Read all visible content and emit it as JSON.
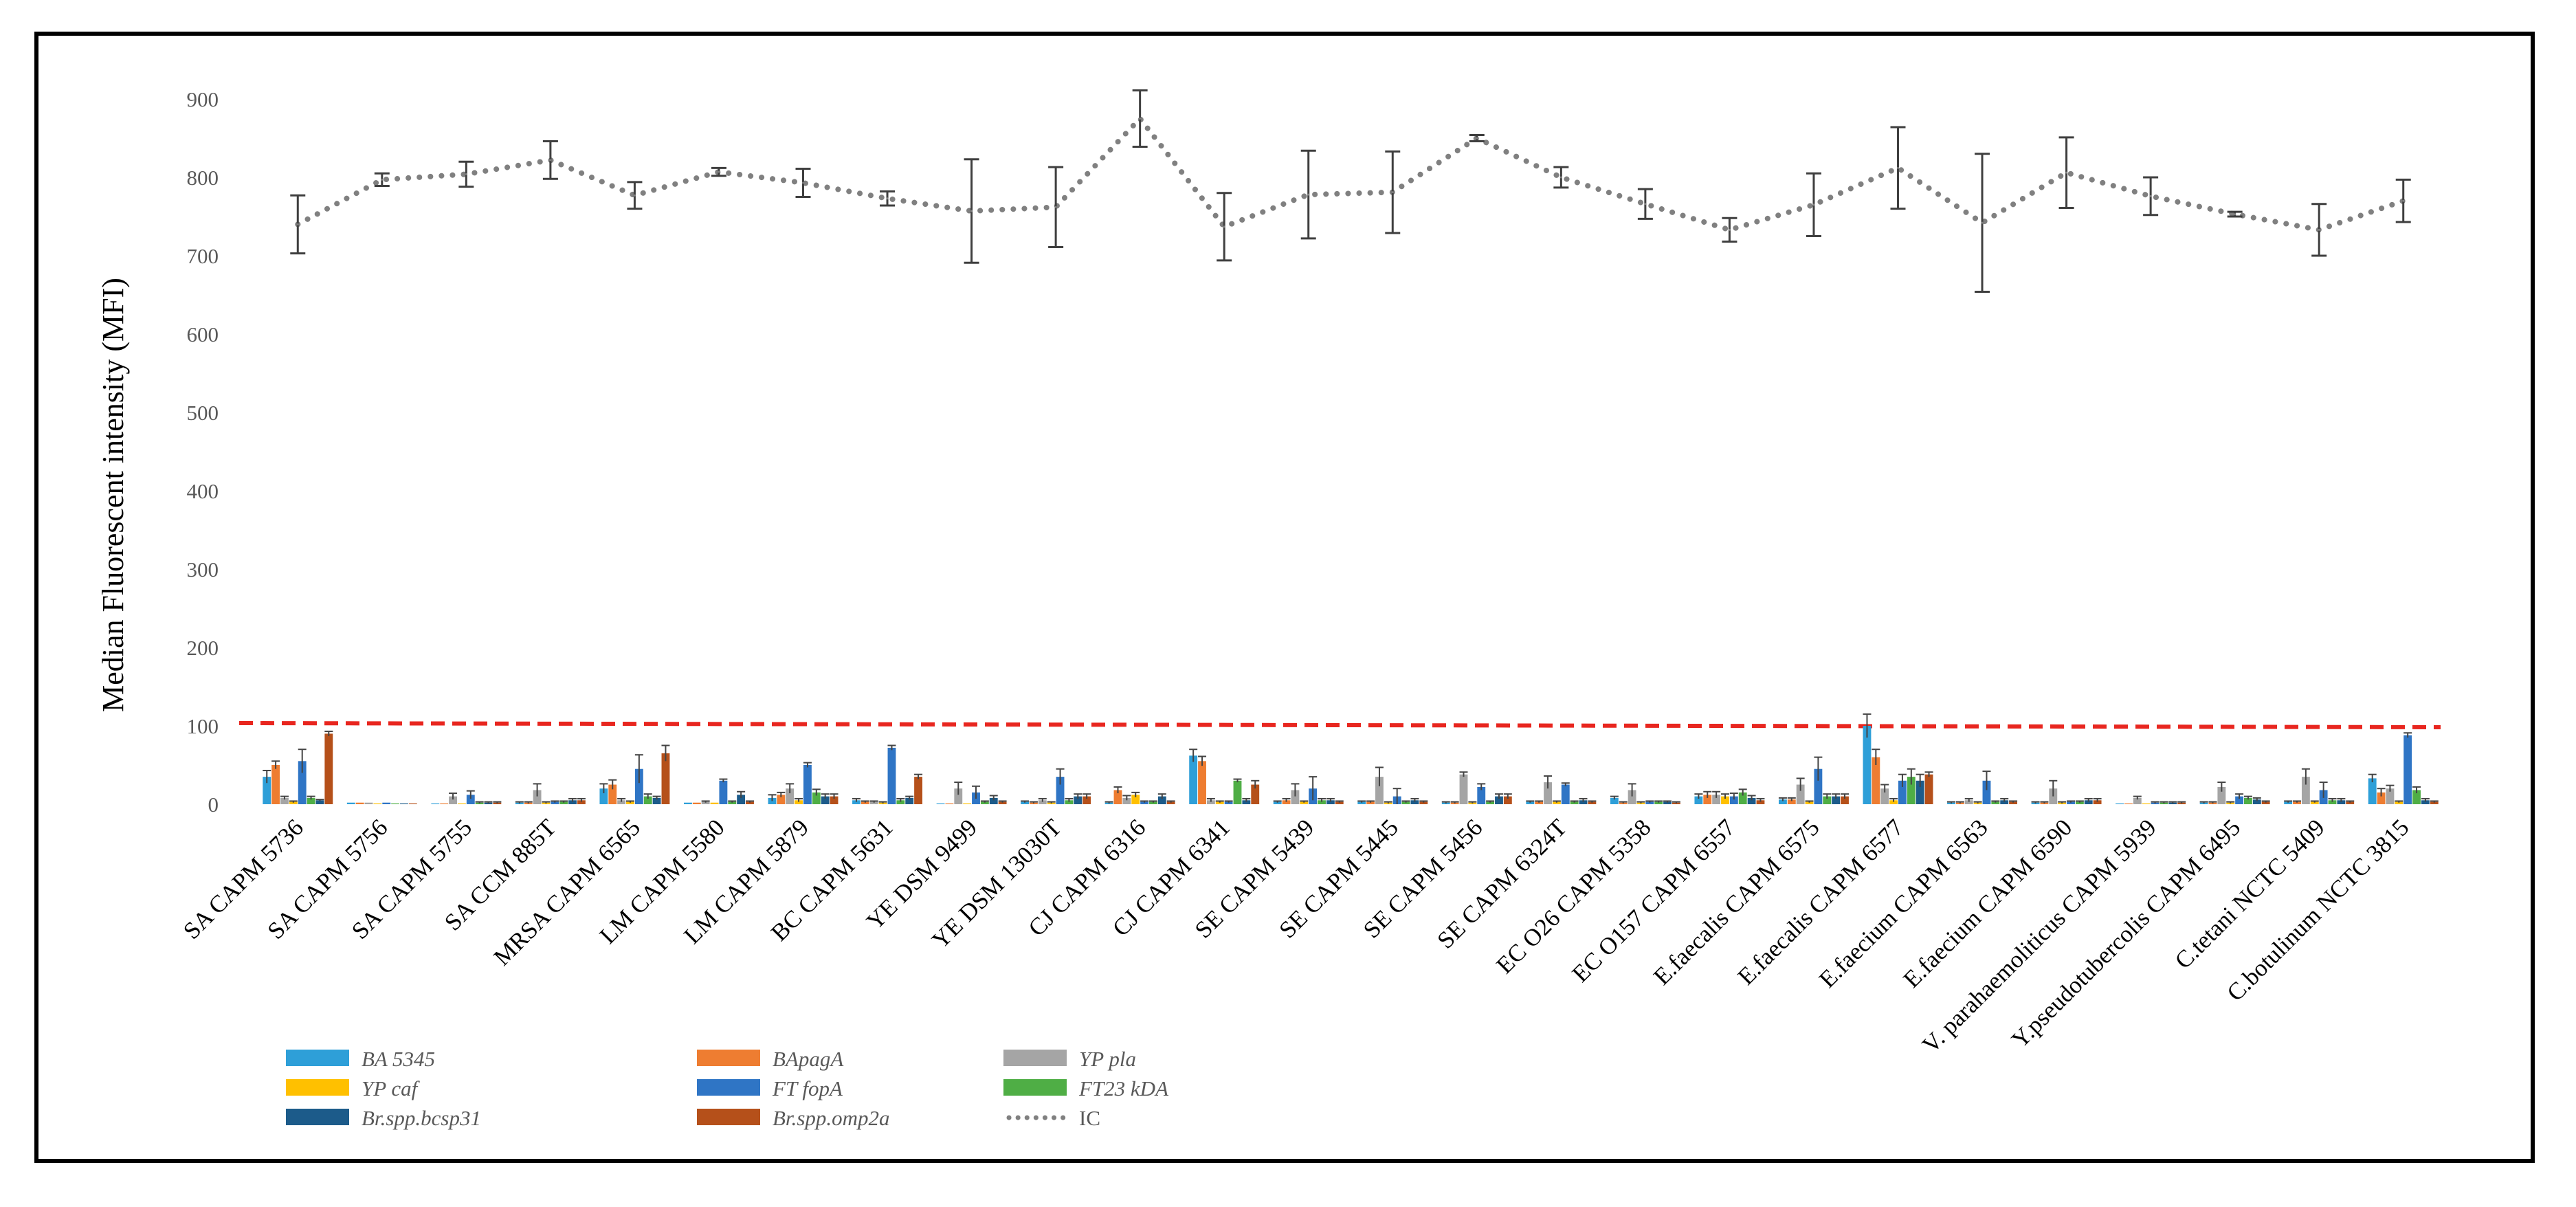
{
  "chart_data": {
    "type": "bar",
    "title": "",
    "xlabel": "",
    "ylabel": "Median Fluorescent intensity (MFI)",
    "ylim": [
      0,
      900
    ],
    "yticks": [
      0,
      100,
      200,
      300,
      400,
      500,
      600,
      700,
      800,
      900
    ],
    "grid": false,
    "legend_position": "bottom-left",
    "threshold": {
      "value": 100,
      "color": "#e8261f",
      "style": "dashed"
    },
    "categories": [
      "SA CAPM 5736",
      "SA CAPM 5756",
      "SA CAPM 5755",
      "SA CCM 885T",
      "MRSA CAPM 6565",
      "LM CAPM 5580",
      "LM  CAPM 5879",
      "BC CAPM 5631",
      "YE DSM 9499",
      "YE DSM 13030T",
      "CJ  CAPM 6316",
      "CJ CAPM 6341",
      "SE CAPM 5439",
      "SE CAPM 5445",
      "SE CAPM 5456",
      "SE CAPM 6324T",
      "EC O26 CAPM 5358",
      "EC O157 CAPM 6557",
      "E.faecalis CAPM 6575",
      "E.faecalis CAPM 6577",
      "E.faecium CAPM 6563",
      "E.faecium CAPM 6590",
      "V. parahaemoliticus CAPM 5939",
      "Y.pseudotubercolis CAPM 6495",
      "C.tetani NCTC 5409",
      "C.botulinum NCTC 3815"
    ],
    "series": [
      {
        "name": "BA 5345",
        "italic": true,
        "color": "#2e9fd8",
        "values": [
          35,
          2,
          1,
          2,
          20,
          2,
          8,
          5,
          1,
          3,
          2,
          62,
          3,
          3,
          2,
          3,
          8,
          10,
          6,
          100,
          2,
          2,
          1,
          2,
          3,
          33
        ],
        "errors": [
          8,
          0,
          0,
          1,
          6,
          0,
          4,
          2,
          0,
          1,
          1,
          8,
          1,
          1,
          1,
          1,
          2,
          3,
          2,
          15,
          1,
          1,
          0,
          1,
          1,
          5
        ]
      },
      {
        "name": "BApagA",
        "italic": true,
        "color": "#ee7d31",
        "values": [
          50,
          2,
          1,
          2,
          25,
          2,
          12,
          3,
          1,
          2,
          18,
          55,
          5,
          3,
          2,
          3,
          2,
          12,
          6,
          60,
          2,
          2,
          1,
          2,
          3,
          15
        ],
        "errors": [
          5,
          0,
          0,
          1,
          6,
          0,
          3,
          1,
          0,
          1,
          4,
          6,
          2,
          1,
          1,
          1,
          1,
          4,
          2,
          10,
          1,
          1,
          0,
          1,
          1,
          5
        ]
      },
      {
        "name": "YP pla",
        "italic": true,
        "color": "#a5a5a5",
        "values": [
          8,
          2,
          10,
          18,
          5,
          3,
          20,
          3,
          20,
          5,
          8,
          5,
          18,
          35,
          38,
          28,
          18,
          12,
          25,
          20,
          5,
          20,
          8,
          22,
          35,
          20
        ],
        "errors": [
          2,
          0,
          4,
          8,
          2,
          1,
          6,
          1,
          8,
          2,
          3,
          2,
          8,
          12,
          3,
          8,
          8,
          4,
          8,
          5,
          2,
          10,
          2,
          6,
          10,
          4
        ]
      },
      {
        "name": "YP caf",
        "italic": true,
        "color": "#ffc000",
        "values": [
          3,
          1,
          1,
          2,
          3,
          2,
          5,
          2,
          1,
          2,
          12,
          3,
          3,
          2,
          2,
          3,
          2,
          10,
          3,
          5,
          2,
          2,
          1,
          2,
          3,
          3
        ],
        "errors": [
          1,
          0,
          0,
          1,
          1,
          0,
          2,
          1,
          0,
          1,
          3,
          1,
          1,
          1,
          1,
          1,
          1,
          3,
          1,
          2,
          1,
          1,
          0,
          1,
          1,
          1
        ]
      },
      {
        "name": "FT fopA",
        "italic": true,
        "color": "#2f75c5",
        "values": [
          55,
          2,
          12,
          3,
          45,
          30,
          50,
          72,
          15,
          35,
          3,
          3,
          20,
          10,
          22,
          25,
          3,
          10,
          45,
          30,
          30,
          3,
          2,
          10,
          18,
          88
        ],
        "errors": [
          15,
          0,
          5,
          1,
          18,
          2,
          3,
          3,
          8,
          10,
          1,
          1,
          15,
          10,
          4,
          2,
          1,
          4,
          15,
          8,
          12,
          1,
          1,
          3,
          10,
          3
        ]
      },
      {
        "name": "FT23 kDA",
        "italic": true,
        "color": "#4fae45",
        "values": [
          8,
          1,
          2,
          3,
          10,
          3,
          15,
          5,
          3,
          5,
          3,
          30,
          5,
          3,
          3,
          3,
          3,
          15,
          10,
          35,
          3,
          3,
          2,
          8,
          5,
          18
        ],
        "errors": [
          2,
          0,
          1,
          1,
          3,
          1,
          4,
          2,
          1,
          2,
          1,
          2,
          2,
          1,
          1,
          1,
          1,
          4,
          3,
          10,
          1,
          1,
          1,
          2,
          2,
          4
        ]
      },
      {
        "name": "Br.spp.bcsp31",
        "italic": true,
        "color": "#1c5b8a",
        "values": [
          5,
          1,
          2,
          5,
          8,
          12,
          10,
          8,
          8,
          10,
          10,
          5,
          5,
          5,
          10,
          5,
          3,
          8,
          10,
          30,
          5,
          5,
          2,
          6,
          5,
          5
        ],
        "errors": [
          1,
          0,
          1,
          2,
          2,
          4,
          3,
          2,
          3,
          3,
          3,
          2,
          2,
          2,
          3,
          2,
          1,
          3,
          3,
          8,
          2,
          2,
          1,
          2,
          2,
          2
        ]
      },
      {
        "name": "Br.spp.omp2a",
        "italic": true,
        "color": "#b5501a",
        "values": [
          90,
          1,
          2,
          5,
          65,
          3,
          10,
          35,
          3,
          10,
          3,
          25,
          3,
          3,
          10,
          3,
          2,
          5,
          10,
          38,
          3,
          5,
          2,
          3,
          3,
          3
        ],
        "errors": [
          3,
          0,
          1,
          2,
          10,
          1,
          3,
          3,
          1,
          3,
          1,
          5,
          1,
          1,
          3,
          1,
          1,
          2,
          3,
          3,
          1,
          2,
          1,
          1,
          1,
          1
        ]
      }
    ],
    "line_series": {
      "name": "IC",
      "italic": false,
      "color": "#808080",
      "style": "dotted",
      "values": [
        740,
        797,
        804,
        822,
        777,
        807,
        793,
        773,
        757,
        762,
        875,
        737,
        778,
        781,
        850,
        800,
        766,
        733,
        765,
        812,
        742,
        806,
        776,
        753,
        733,
        770
      ],
      "errors": [
        37,
        8,
        16,
        24,
        17,
        5,
        18,
        9,
        66,
        51,
        36,
        43,
        56,
        52,
        4,
        13,
        19,
        15,
        40,
        52,
        88,
        45,
        24,
        3,
        33,
        27
      ]
    }
  }
}
